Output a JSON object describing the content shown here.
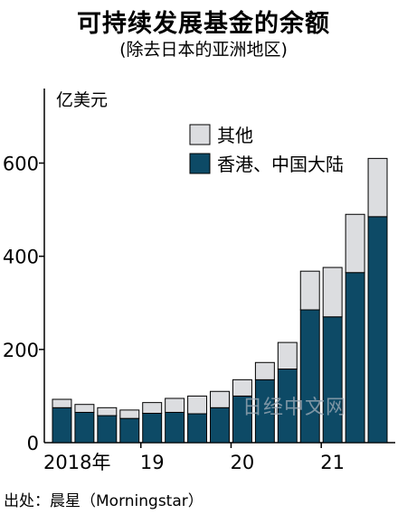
{
  "chart_data": {
    "type": "bar",
    "stacked": true,
    "title": "可持续发展基金的余额",
    "subtitle": "(除去日本的亚洲地区)",
    "ylabel": "亿美元",
    "ylim": [
      0,
      760
    ],
    "y_ticks": [
      0,
      200,
      400,
      600
    ],
    "x_tick_labels": [
      {
        "label": "2018年",
        "index": 0
      },
      {
        "label": "19",
        "index": 4
      },
      {
        "label": "20",
        "index": 8
      },
      {
        "label": "21",
        "index": 12
      }
    ],
    "categories": [
      "2018Q1",
      "2018Q2",
      "2018Q3",
      "2018Q4",
      "2019Q1",
      "2019Q2",
      "2019Q3",
      "2019Q4",
      "2020Q1",
      "2020Q2",
      "2020Q3",
      "2020Q4",
      "2021Q1",
      "2021Q2",
      "2021Q3"
    ],
    "series": [
      {
        "name": "香港、中国大陆",
        "color": "#0d4a66",
        "values": [
          75,
          65,
          58,
          52,
          63,
          65,
          62,
          75,
          100,
          135,
          158,
          285,
          270,
          365,
          485
        ]
      },
      {
        "name": "其他",
        "color": "#dcdde0",
        "values": [
          18,
          17,
          17,
          18,
          23,
          30,
          38,
          35,
          35,
          37,
          57,
          83,
          106,
          125,
          125
        ]
      }
    ],
    "legend_position": "top-right",
    "watermark": "日经中文网"
  },
  "source": "出处：晨星（Morningstar）"
}
